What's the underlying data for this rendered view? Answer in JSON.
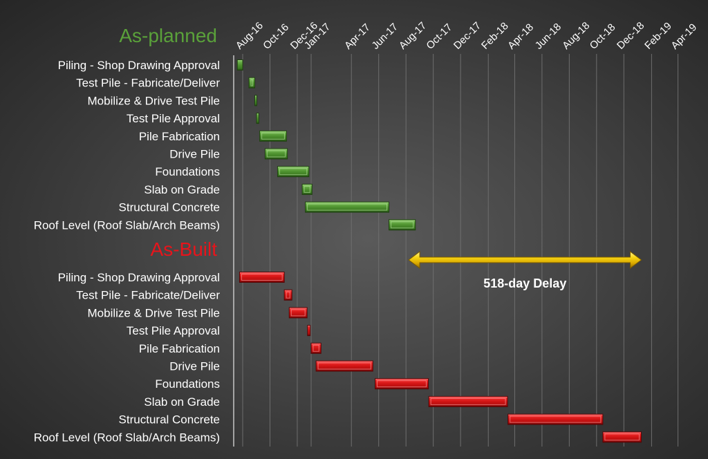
{
  "chart_data": {
    "type": "gantt",
    "x_ticks": [
      "Aug-16",
      "Oct-16",
      "Dec-16",
      "Jan-17",
      "Apr-17",
      "Jun-17",
      "Aug-17",
      "Oct-17",
      "Dec-17",
      "Feb-18",
      "Apr-18",
      "Jun-18",
      "Aug-18",
      "Oct-18",
      "Dec-18",
      "Feb-19",
      "Apr-19"
    ],
    "xlim": [
      "2016-07-15",
      "2019-05-01"
    ],
    "grid": true,
    "sections": [
      {
        "name": "As-planned",
        "color": "#5aa13a",
        "tasks": [
          {
            "label": "Piling - Shop Drawing Approval",
            "start": "2016-07-20",
            "end": "2016-08-01"
          },
          {
            "label": "Test Pile - Fabricate/Deliver",
            "start": "2016-08-15",
            "end": "2016-08-28"
          },
          {
            "label": "Mobilize & Drive Test Pile",
            "start": "2016-08-28",
            "end": "2016-08-31"
          },
          {
            "label": "Test Pile Approval",
            "start": "2016-09-01",
            "end": "2016-09-06"
          },
          {
            "label": "Pile Fabrication",
            "start": "2016-09-08",
            "end": "2016-11-07"
          },
          {
            "label": "Drive Pile",
            "start": "2016-09-20",
            "end": "2016-11-09"
          },
          {
            "label": "Foundations",
            "start": "2016-10-18",
            "end": "2016-12-27"
          },
          {
            "label": "Slab on Grade",
            "start": "2016-12-12",
            "end": "2017-01-03"
          },
          {
            "label": "Structural Concrete",
            "start": "2016-12-19",
            "end": "2017-06-24"
          },
          {
            "label": "Roof Level (Roof Slab/Arch Beams)",
            "start": "2017-06-24",
            "end": "2017-08-22"
          }
        ]
      },
      {
        "name": "As-Built",
        "color": "#e8141b",
        "tasks": [
          {
            "label": "Piling - Shop Drawing Approval",
            "start": "2016-07-25",
            "end": "2016-11-02"
          },
          {
            "label": "Test Pile - Fabricate/Deliver",
            "start": "2016-11-02",
            "end": "2016-11-19"
          },
          {
            "label": "Mobilize & Drive Test Pile",
            "start": "2016-11-13",
            "end": "2016-12-23"
          },
          {
            "label": "Test Pile Approval",
            "start": "2016-12-24",
            "end": "2016-12-30"
          },
          {
            "label": "Pile Fabrication",
            "start": "2017-01-01",
            "end": "2017-01-23"
          },
          {
            "label": "Drive Pile",
            "start": "2017-01-12",
            "end": "2017-05-19"
          },
          {
            "label": "Foundations",
            "start": "2017-05-24",
            "end": "2017-09-20"
          },
          {
            "label": "Slab on Grade",
            "start": "2017-09-21",
            "end": "2018-03-16"
          },
          {
            "label": "Structural Concrete",
            "start": "2018-03-17",
            "end": "2018-10-15"
          },
          {
            "label": "Roof Level (Roof Slab/Arch Beams)",
            "start": "2018-10-15",
            "end": "2019-01-09"
          }
        ]
      }
    ],
    "annotation": {
      "text": "518-day Delay",
      "start": "2017-08-07",
      "end": "2019-01-09",
      "color": "#f2cf08"
    }
  }
}
